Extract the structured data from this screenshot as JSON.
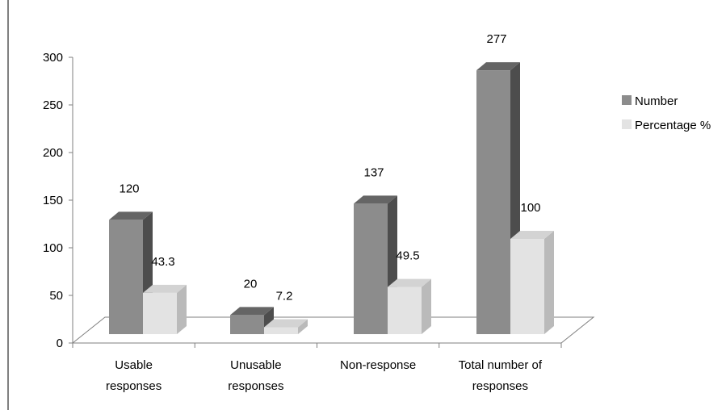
{
  "chart_data": {
    "type": "bar",
    "categories": [
      [
        "Usable",
        "responses"
      ],
      [
        "Unusable",
        "responses"
      ],
      [
        "Non-response"
      ],
      [
        "Total number of",
        "responses"
      ]
    ],
    "series": [
      {
        "name": "Number",
        "values": [
          120,
          20,
          137,
          277
        ],
        "labels": [
          "120",
          "20",
          "137",
          "277"
        ],
        "color": "#8c8c8c"
      },
      {
        "name": "Percentage %",
        "values": [
          43.3,
          7.2,
          49.5,
          100
        ],
        "labels": [
          "43.3",
          "7.2",
          "49.5",
          "100"
        ],
        "color": "#e3e3e3"
      }
    ],
    "yticks": [
      "0",
      "50",
      "100",
      "150",
      "200",
      "250",
      "300"
    ],
    "ylim": [
      0,
      300
    ],
    "legend_position": "right",
    "grid": false,
    "title": "",
    "xlabel": "",
    "ylabel": ""
  }
}
